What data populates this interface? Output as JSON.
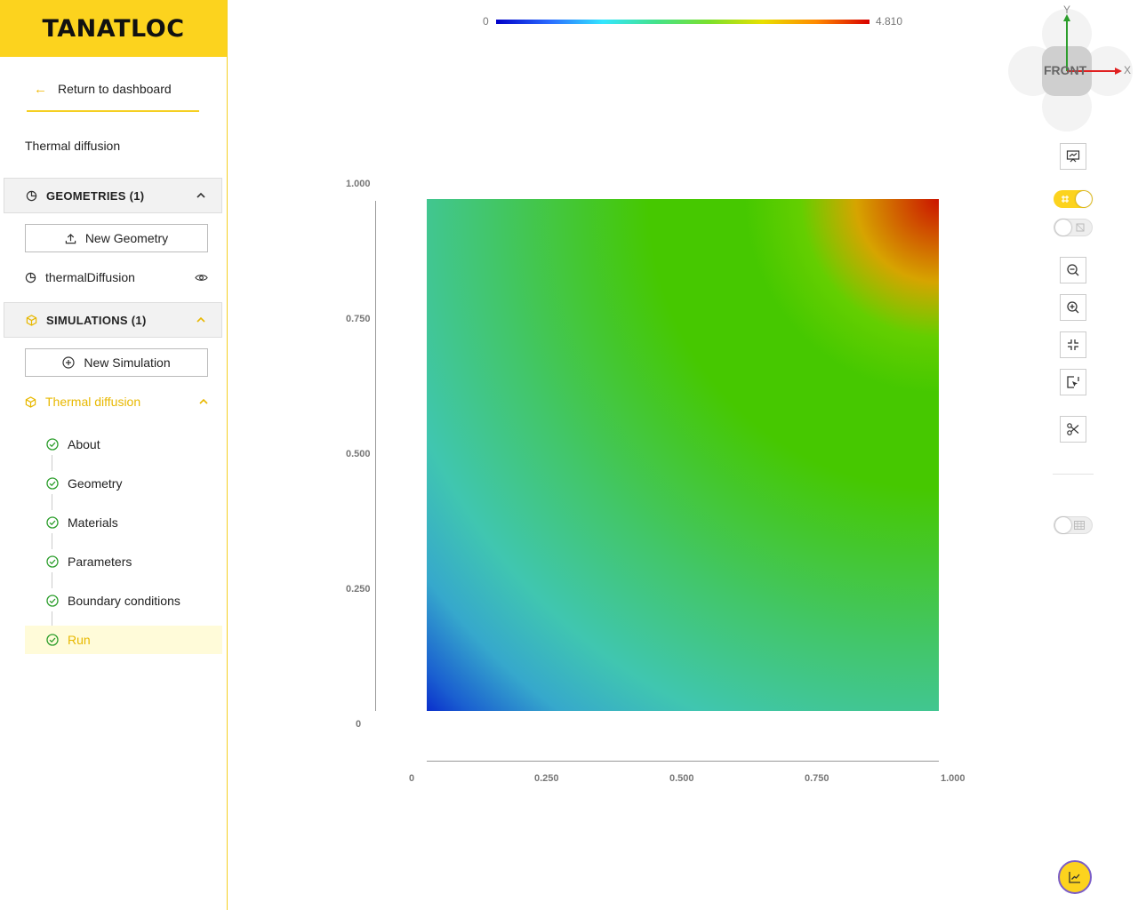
{
  "app": {
    "logo": "TANATLOC"
  },
  "sidebar": {
    "return_label": "Return to dashboard",
    "project_name": "Thermal diffusion",
    "geometries": {
      "header": "GEOMETRIES (1)",
      "new_button": "New Geometry",
      "items": [
        {
          "label": "thermalDiffusion"
        }
      ]
    },
    "simulations": {
      "header": "SIMULATIONS (1)",
      "new_button": "New Simulation",
      "current": {
        "label": "Thermal diffusion",
        "steps": [
          {
            "label": "About"
          },
          {
            "label": "Geometry"
          },
          {
            "label": "Materials"
          },
          {
            "label": "Parameters"
          },
          {
            "label": "Boundary conditions"
          },
          {
            "label": "Run"
          }
        ]
      }
    }
  },
  "viewer": {
    "colorbar": {
      "min": "0",
      "max": "4.810"
    },
    "orientation": {
      "label": "FRONT",
      "x": "X",
      "y": "Y"
    },
    "axes": {
      "y_ticks": [
        "1.000",
        "0.750",
        "0.500",
        "0.250",
        "0"
      ],
      "x_ticks": [
        "0",
        "0.250",
        "0.500",
        "0.750",
        "1.000"
      ]
    }
  },
  "colors": {
    "accent": "#fcd31e",
    "active_text": "#e8b800",
    "check": "#2a9d2a"
  }
}
